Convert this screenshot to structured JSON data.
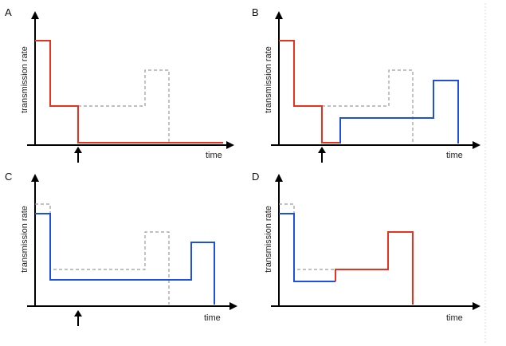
{
  "colors": {
    "red": "#e8321e",
    "blue": "#1f4fe0",
    "reference": "#9a9a9a",
    "axis": "#000000"
  },
  "panels": [
    {
      "letter": "A",
      "ylabel": "transmission rate",
      "xlabel": "time"
    },
    {
      "letter": "B",
      "ylabel": "transmission rate",
      "xlabel": "time"
    },
    {
      "letter": "C",
      "ylabel": "transmission rate",
      "xlabel": "time"
    },
    {
      "letter": "D",
      "ylabel": "transmission rate",
      "xlabel": "time"
    }
  ],
  "icons": {
    "axis_arrow": "arrow-head-icon",
    "intervention": "up-arrow-icon"
  }
}
